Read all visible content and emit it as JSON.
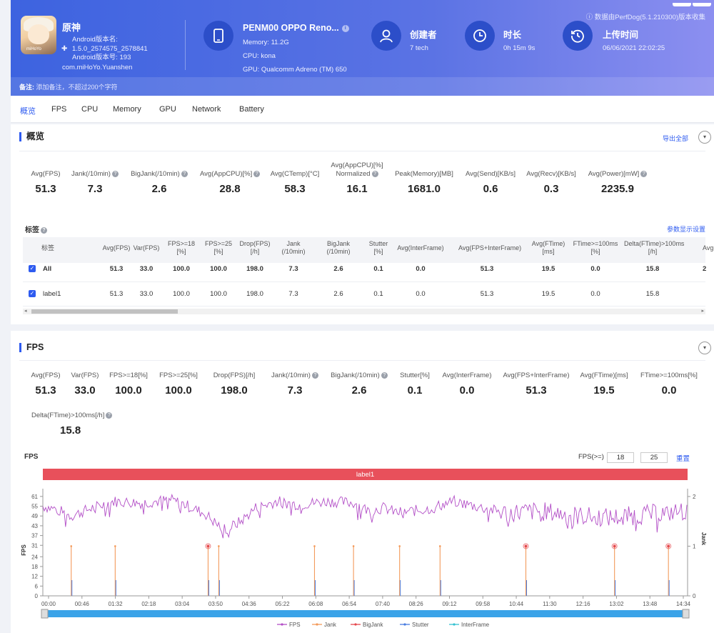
{
  "header": {
    "note": "ⓘ 数据由PerfDog(5.1.210300)版本收集",
    "app_name": "原神",
    "app_icon_text": "miHoYo",
    "app_info_lines": [
      "Android版本名:",
      "1.5.0_2574575_2578841",
      "Android版本号: 193"
    ],
    "package": "com.miHoYo.Yuanshen",
    "device": {
      "title": "PENM00 OPPO Reno...",
      "memory": "Memory: 11.2G",
      "cpu": "CPU: kona",
      "gpu": "GPU: Qualcomm Adreno (TM) 650"
    },
    "creator": {
      "title": "创建者",
      "value": "7 tech"
    },
    "duration": {
      "title": "时长",
      "value": "0h 15m 9s"
    },
    "upload": {
      "title": "上传时间",
      "value": "06/06/2021 22:02:25"
    },
    "remark_label": "备注:",
    "remark_placeholder": "添加备注，不超过200个字符"
  },
  "tabs": [
    "概览",
    "FPS",
    "CPU",
    "Memory",
    "GPU",
    "Network",
    "Battery"
  ],
  "overview": {
    "title": "概览",
    "export": "导出全部",
    "metrics": [
      {
        "label": "Avg(FPS)",
        "value": "51.3"
      },
      {
        "label": "Jank(/10min)",
        "value": "7.3"
      },
      {
        "label": "BigJank(/10min)",
        "value": "2.6"
      },
      {
        "label": "Avg(AppCPU)[%]",
        "value": "28.8"
      },
      {
        "label": "Avg(CTemp)[°C]",
        "value": "58.3"
      },
      {
        "label": "Avg(AppCPU)[%]",
        "label2": "Normalized",
        "value": "16.1"
      },
      {
        "label": "Peak(Memory)[MB]",
        "value": "1681.0"
      },
      {
        "label": "Avg(Send)[KB/s]",
        "value": "0.6"
      },
      {
        "label": "Avg(Recv)[KB/s]",
        "value": "0.3"
      },
      {
        "label": "Avg(Power)[mW]",
        "value": "2235.9"
      }
    ],
    "tag_title": "标签",
    "param_settings": "参数显示设置",
    "table": {
      "headers": [
        "标签",
        "Avg(FPS)",
        "Var(FPS)",
        "FPS>=18\n[%]",
        "FPS>=25\n[%]",
        "Drop(FPS)\n[/h]",
        "Jank\n(/10min)",
        "BigJank\n(/10min)",
        "Stutter\n[%]",
        "Avg(InterFrame)",
        "Avg(FPS+InterFrame)",
        "Avg(FTime)\n[ms]",
        "FTime>=100ms\n[%]",
        "Delta(FTime)>100ms\n[/h]",
        "Avg("
      ],
      "rows": [
        {
          "label": "All",
          "cells": [
            "51.3",
            "33.0",
            "100.0",
            "100.0",
            "198.0",
            "7.3",
            "2.6",
            "0.1",
            "0.0",
            "51.3",
            "19.5",
            "0.0",
            "15.8",
            "2"
          ]
        },
        {
          "label": "label1",
          "cells": [
            "51.3",
            "33.0",
            "100.0",
            "100.0",
            "198.0",
            "7.3",
            "2.6",
            "0.1",
            "0.0",
            "51.3",
            "19.5",
            "0.0",
            "15.8",
            ""
          ]
        }
      ]
    }
  },
  "fps_section": {
    "title": "FPS",
    "metrics": [
      {
        "label": "Avg(FPS)",
        "value": "51.3"
      },
      {
        "label": "Var(FPS)",
        "value": "33.0"
      },
      {
        "label": "FPS>=18[%]",
        "value": "100.0"
      },
      {
        "label": "FPS>=25[%]",
        "value": "100.0"
      },
      {
        "label": "Drop(FPS)[/h]",
        "value": "198.0"
      },
      {
        "label": "Jank(/10min)",
        "value": "7.3"
      },
      {
        "label": "BigJank(/10min)",
        "value": "2.6"
      },
      {
        "label": "Stutter[%]",
        "value": "0.1"
      },
      {
        "label": "Avg(InterFrame)",
        "value": "0.0"
      },
      {
        "label": "Avg(FPS+InterFrame)",
        "value": "51.3"
      },
      {
        "label": "Avg(FTime)[ms]",
        "value": "19.5"
      },
      {
        "label": "FTime>=100ms[%]",
        "value": "0.0"
      }
    ],
    "delta_label": "Delta(FTime)>100ms[/h]",
    "delta_value": "15.8",
    "fps_threshold_label": "FPS(>=)",
    "fps_low": "18",
    "fps_high": "25",
    "reset": "重置"
  },
  "chart_data": {
    "type": "line",
    "title": "FPS",
    "band_label": "label1",
    "ylabel": "FPS",
    "y2label": "Jank",
    "yticks": [
      0,
      6,
      12,
      18,
      24,
      31,
      37,
      43,
      49,
      55,
      61
    ],
    "y2ticks": [
      0,
      1,
      2
    ],
    "ylim": [
      0,
      64
    ],
    "y2lim": [
      0,
      2.1
    ],
    "xticks": [
      "00:00",
      "00:46",
      "01:32",
      "02:18",
      "03:04",
      "03:50",
      "04:36",
      "05:22",
      "06:08",
      "06:54",
      "07:40",
      "08:26",
      "09:12",
      "09:58",
      "10:44",
      "11:30",
      "12:16",
      "13:02",
      "13:48",
      "14:34"
    ],
    "duration_s": 909,
    "fps_profile": [
      [
        0,
        55
      ],
      [
        20,
        53
      ],
      [
        40,
        49
      ],
      [
        70,
        54
      ],
      [
        100,
        58
      ],
      [
        140,
        57
      ],
      [
        180,
        59
      ],
      [
        200,
        56
      ],
      [
        230,
        50
      ],
      [
        245,
        44
      ],
      [
        260,
        41
      ],
      [
        280,
        46
      ],
      [
        300,
        54
      ],
      [
        330,
        58
      ],
      [
        360,
        56
      ],
      [
        400,
        58
      ],
      [
        440,
        57
      ],
      [
        460,
        52
      ],
      [
        480,
        54
      ],
      [
        500,
        51
      ],
      [
        540,
        53
      ],
      [
        580,
        58
      ],
      [
        620,
        54
      ],
      [
        650,
        51
      ],
      [
        700,
        52
      ],
      [
        760,
        49
      ],
      [
        800,
        48
      ],
      [
        850,
        50
      ],
      [
        909,
        52
      ]
    ],
    "jank_events_s": [
      40,
      102,
      233,
      248,
      383,
      438,
      503,
      560,
      681,
      806,
      882
    ],
    "bigjank_events_s": [
      233,
      681,
      806,
      882
    ],
    "legend": [
      "FPS",
      "Jank",
      "BigJank",
      "Stutter",
      "InterFrame"
    ],
    "colors": {
      "FPS": "#b34fc7",
      "Jank": "#f39a5b",
      "BigJank": "#e5484d",
      "Stutter": "#4a7de0",
      "InterFrame": "#35c2d1",
      "band": "#e8505b",
      "slider": "#3aa3e8"
    }
  }
}
